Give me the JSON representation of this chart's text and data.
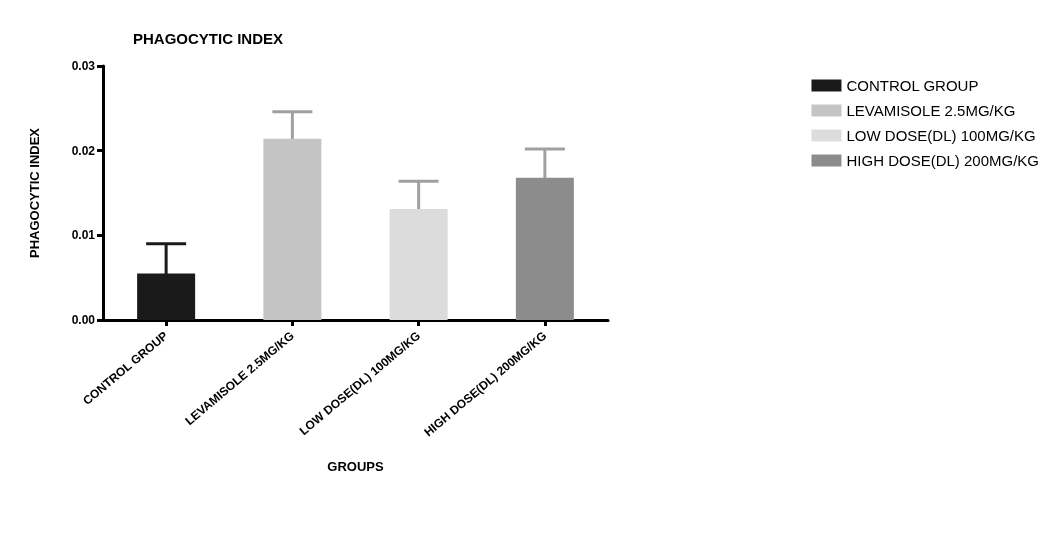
{
  "chart_data": {
    "type": "bar",
    "title": "PHAGOCYTIC INDEX",
    "xlabel": "GROUPS",
    "ylabel": "PHAGOCYTIC INDEX",
    "categories": [
      "CONTROL GROUP",
      "LEVAMISOLE 2.5MG/KG",
      "LOW DOSE(DL) 100MG/KG",
      "HIGH DOSE(DL) 200MG/KG"
    ],
    "series": [
      {
        "name": "CONTROL GROUP",
        "color": "#1a1a1a",
        "values": [
          0.0055,
          null,
          null,
          null
        ],
        "errors": [
          0.0035,
          null,
          null,
          null
        ]
      },
      {
        "name": "LEVAMISOLE 2.5MG/KG",
        "color": "#c4c4c4",
        "values": [
          null,
          0.0214,
          null,
          null
        ],
        "errors": [
          null,
          0.0032,
          null,
          null
        ]
      },
      {
        "name": "LOW DOSE(DL) 100MG/KG",
        "color": "#dcdcdc",
        "values": [
          null,
          null,
          0.0131,
          null
        ],
        "errors": [
          null,
          null,
          0.0033,
          null
        ]
      },
      {
        "name": "HIGH DOSE(DL) 200MG/KG",
        "color": "#8c8c8c",
        "values": [
          null,
          null,
          null,
          0.0168
        ],
        "errors": [
          null,
          null,
          null,
          0.0034
        ]
      }
    ],
    "ylim": [
      0,
      0.03
    ],
    "yticks": [
      {
        "value": 0,
        "label": "0.00"
      },
      {
        "value": 0.01,
        "label": "0.01"
      },
      {
        "value": 0.02,
        "label": "0.02"
      },
      {
        "value": 0.03,
        "label": "0.03"
      }
    ],
    "grid": false,
    "legend": "top right"
  }
}
